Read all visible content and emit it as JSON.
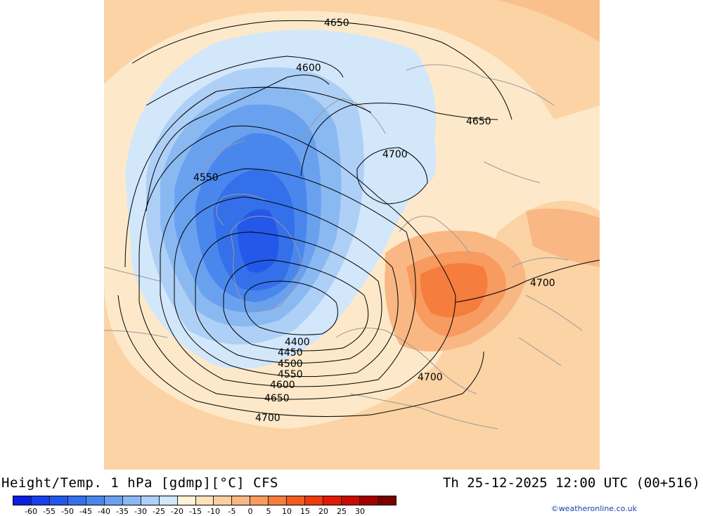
{
  "map": {
    "contour_labels": [
      "4650",
      "4600",
      "4650",
      "4700",
      "4550",
      "4400",
      "4450",
      "4500",
      "4550",
      "4600",
      "4650",
      "4700",
      "4700",
      "4700"
    ]
  },
  "footer": {
    "title": "Height/Temp. 1 hPa [gdmp][°C] CFS",
    "datetime": "Th 25-12-2025 12:00 UTC (00+516)",
    "credit": "©weatheronline.co.uk"
  },
  "legend": {
    "colors": [
      "#0a1ee0",
      "#1740e8",
      "#2458ea",
      "#3470ea",
      "#4a87ec",
      "#6aa1ef",
      "#8ab9f2",
      "#aed0f6",
      "#d2e7fa",
      "#fff2d6",
      "#fde2bd",
      "#fbd0a1",
      "#f9b883",
      "#f79b60",
      "#f57d3d",
      "#f25c1e",
      "#ee3a0c",
      "#e01c06",
      "#c80a03",
      "#a30000",
      "#7a0000"
    ],
    "tick_labels": [
      "-60",
      "-55",
      "-50",
      "-45",
      "-40",
      "-35",
      "-30",
      "-25",
      "-20",
      "-15",
      "-10",
      "-5",
      "0",
      "5",
      "10",
      "15",
      "20",
      "25",
      "30"
    ]
  }
}
